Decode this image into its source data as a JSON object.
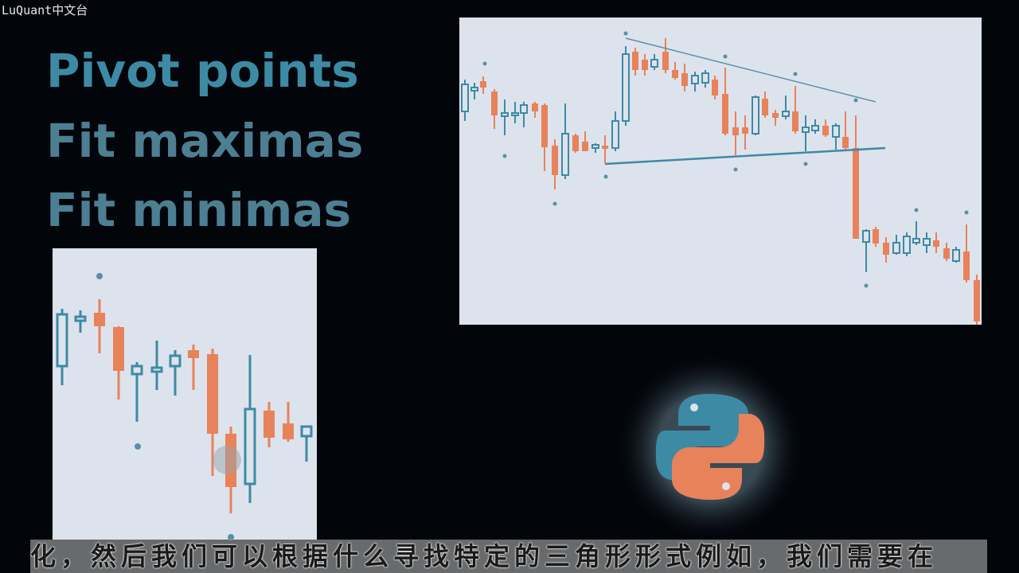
{
  "watermark": "LuQuant中文台",
  "slide": {
    "titles": [
      "Pivot points",
      "Fit maximas",
      "Fit minimas"
    ]
  },
  "subtitle": "化，然后我们可以根据什么寻找特定的三角形形式例如，我们需要在"
}
